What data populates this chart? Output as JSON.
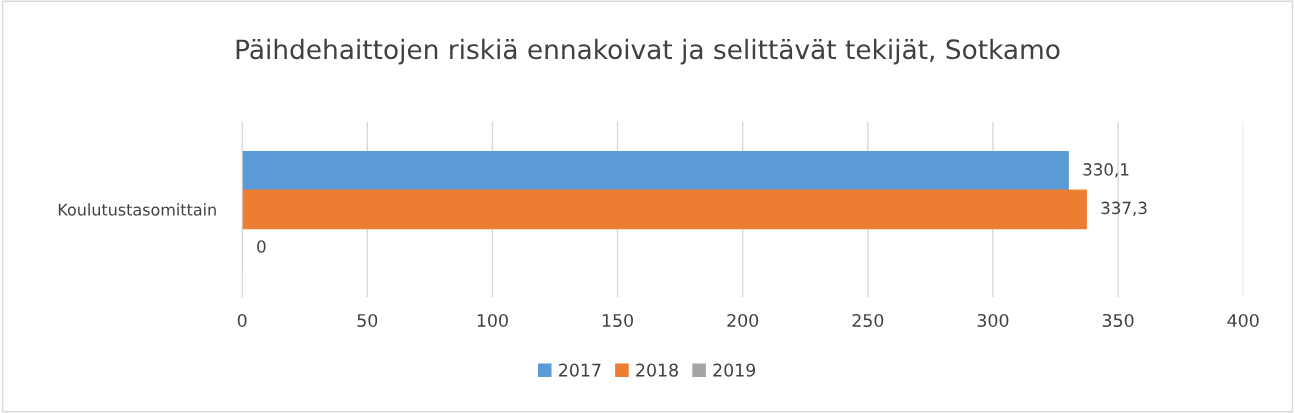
{
  "chart_data": {
    "type": "bar",
    "orientation": "horizontal",
    "title": "Päihdehaittojen riskiä ennakoivat ja selittävät tekijät, Sotkamo",
    "categories": [
      "Koulutustasomittain"
    ],
    "series": [
      {
        "name": "2017",
        "color": "#5b9bd5",
        "values": [
          330.1
        ],
        "value_labels": [
          "330,1"
        ]
      },
      {
        "name": "2018",
        "color": "#ed7d31",
        "values": [
          337.3
        ],
        "value_labels": [
          "337,3"
        ]
      },
      {
        "name": "2019",
        "color": "#a5a5a5",
        "values": [
          0
        ],
        "value_labels": [
          "0"
        ]
      }
    ],
    "xlim": [
      0,
      400
    ],
    "xticks": [
      0,
      50,
      100,
      150,
      200,
      250,
      300,
      350,
      400
    ],
    "grid": "x",
    "legend": "bottom"
  }
}
